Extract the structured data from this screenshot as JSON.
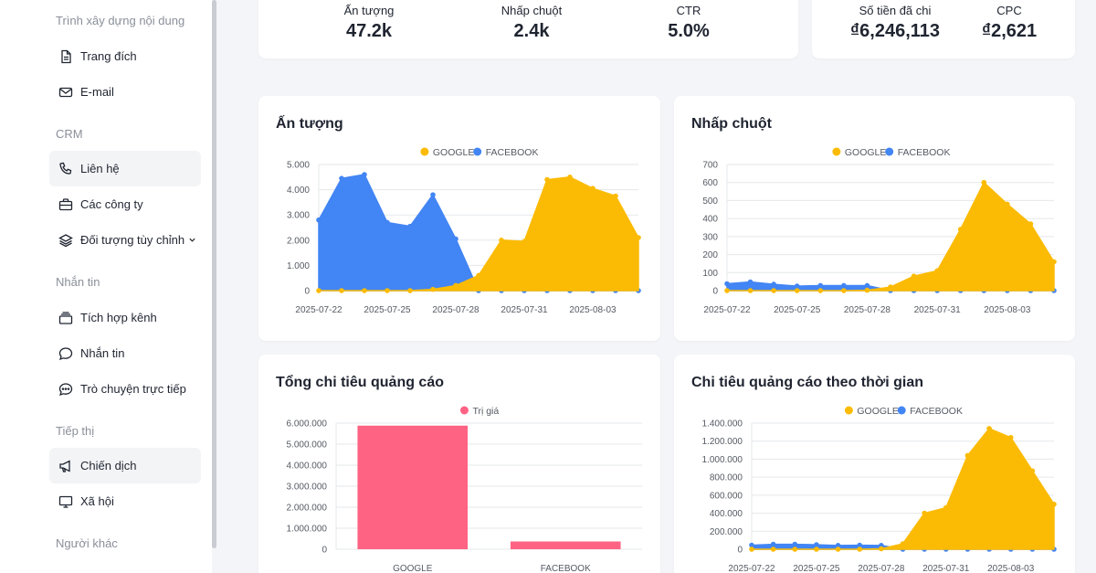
{
  "sidebar": {
    "sections": [
      {
        "label": "Trình xây dựng nội dung",
        "items": [
          {
            "label": "Trang đích",
            "icon": "document-icon"
          },
          {
            "label": "E-mail",
            "icon": "mail-icon"
          }
        ]
      },
      {
        "label": "CRM",
        "items": [
          {
            "label": "Liên hệ",
            "icon": "phone-icon"
          },
          {
            "label": "Các công ty",
            "icon": "briefcase-icon"
          },
          {
            "label": "Đối tượng tùy chỉnh",
            "icon": "layers-icon"
          }
        ]
      },
      {
        "label": "Nhắn tin",
        "items": [
          {
            "label": "Tích hợp kênh",
            "icon": "inbox-stack-icon"
          },
          {
            "label": "Nhắn tin",
            "icon": "chat-bubble-icon"
          },
          {
            "label": "Trò chuyện trực tiếp",
            "icon": "chat-dots-icon"
          }
        ]
      },
      {
        "label": "Tiếp thị",
        "items": [
          {
            "label": "Chiến dịch",
            "icon": "megaphone-icon"
          },
          {
            "label": "Xã hội",
            "icon": "monitor-icon"
          }
        ]
      },
      {
        "label": "Người khác",
        "items": []
      }
    ]
  },
  "stats": {
    "impressions": {
      "label": "Ấn tượng",
      "value": "47.2k"
    },
    "clicks": {
      "label": "Nhấp chuột",
      "value": "2.4k"
    },
    "ctr": {
      "label": "CTR",
      "value": "5.0%"
    },
    "spent": {
      "label": "Số tiền đã chi",
      "value": "₫6,246,113"
    },
    "cpc": {
      "label": "CPC",
      "value": "₫2,621"
    }
  },
  "colors": {
    "google": "#fbbb04",
    "facebook": "#4285f4",
    "bar": "#ff6384",
    "grid": "#e6e7ea",
    "tick": "#555a63"
  },
  "chart_data": [
    {
      "id": "impressions",
      "title": "Ấn tượng",
      "type": "area",
      "x": [
        "2025-07-22",
        "2025-07-23",
        "2025-07-24",
        "2025-07-25",
        "2025-07-26",
        "2025-07-27",
        "2025-07-28",
        "2025-07-29",
        "2025-07-30",
        "2025-07-31",
        "2025-08-01",
        "2025-08-02",
        "2025-08-03",
        "2025-08-04",
        "2025-08-05"
      ],
      "xticks": [
        "2025-07-22",
        "2025-07-25",
        "2025-07-28",
        "2025-07-31",
        "2025-08-03"
      ],
      "yticks": [
        "0",
        "1.000",
        "2.000",
        "3.000",
        "4.000",
        "5.000"
      ],
      "ylim": [
        0,
        5000
      ],
      "legend": [
        "GOOGLE",
        "FACEBOOK"
      ],
      "series": [
        {
          "name": "FACEBOOK",
          "values": [
            2800,
            4450,
            4600,
            2700,
            2550,
            3800,
            2050,
            0,
            0,
            0,
            0,
            0,
            0,
            0,
            0
          ]
        },
        {
          "name": "GOOGLE",
          "values": [
            0,
            0,
            0,
            0,
            0,
            50,
            200,
            600,
            2000,
            1950,
            4400,
            4500,
            4050,
            3750,
            2100
          ]
        }
      ]
    },
    {
      "id": "clicks",
      "title": "Nhấp chuột",
      "type": "area",
      "x": [
        "2025-07-22",
        "2025-07-23",
        "2025-07-24",
        "2025-07-25",
        "2025-07-26",
        "2025-07-27",
        "2025-07-28",
        "2025-07-29",
        "2025-07-30",
        "2025-07-31",
        "2025-08-01",
        "2025-08-02",
        "2025-08-03",
        "2025-08-04",
        "2025-08-05"
      ],
      "xticks": [
        "2025-07-22",
        "2025-07-25",
        "2025-07-28",
        "2025-07-31",
        "2025-08-03"
      ],
      "yticks": [
        "0",
        "100",
        "200",
        "300",
        "400",
        "500",
        "600",
        "700"
      ],
      "ylim": [
        0,
        700
      ],
      "legend": [
        "GOOGLE",
        "FACEBOOK"
      ],
      "series": [
        {
          "name": "FACEBOOK",
          "values": [
            38,
            48,
            35,
            25,
            28,
            28,
            28,
            0,
            0,
            0,
            0,
            0,
            0,
            0,
            0
          ]
        },
        {
          "name": "GOOGLE",
          "values": [
            0,
            0,
            0,
            0,
            0,
            0,
            2,
            20,
            80,
            110,
            340,
            600,
            480,
            370,
            160
          ]
        }
      ]
    },
    {
      "id": "total-spend",
      "title": "Tổng chi tiêu quảng cáo",
      "type": "bar",
      "categories": [
        "GOOGLE",
        "FACEBOOK"
      ],
      "yticks": [
        "0",
        "1.000.000",
        "2.000.000",
        "3.000.000",
        "4.000.000",
        "5.000.000",
        "6.000.000"
      ],
      "ylim": [
        0,
        6000000
      ],
      "legend": [
        "Trị giá"
      ],
      "series": [
        {
          "name": "Trị giá",
          "values": [
            5880000,
            370000
          ]
        }
      ]
    },
    {
      "id": "spend-over-time",
      "title": "Chi tiêu quảng cáo theo thời gian",
      "type": "area",
      "x": [
        "2025-07-22",
        "2025-07-23",
        "2025-07-24",
        "2025-07-25",
        "2025-07-26",
        "2025-07-27",
        "2025-07-28",
        "2025-07-29",
        "2025-07-30",
        "2025-07-31",
        "2025-08-01",
        "2025-08-02",
        "2025-08-03",
        "2025-08-04",
        "2025-08-05"
      ],
      "xticks": [
        "2025-07-22",
        "2025-07-25",
        "2025-07-28",
        "2025-07-31",
        "2025-08-03"
      ],
      "yticks": [
        "0",
        "200.000",
        "400.000",
        "600.000",
        "800.000",
        "1.000.000",
        "1.200.000",
        "1.400.000"
      ],
      "ylim": [
        0,
        1400000
      ],
      "legend": [
        "GOOGLE",
        "FACEBOOK"
      ],
      "series": [
        {
          "name": "FACEBOOK",
          "values": [
            45000,
            55000,
            55000,
            50000,
            42000,
            45000,
            42000,
            0,
            0,
            0,
            0,
            0,
            0,
            0,
            0
          ]
        },
        {
          "name": "GOOGLE",
          "values": [
            0,
            0,
            0,
            0,
            0,
            0,
            5000,
            60000,
            400000,
            460000,
            1040000,
            1340000,
            1240000,
            870000,
            500000
          ]
        }
      ]
    }
  ]
}
